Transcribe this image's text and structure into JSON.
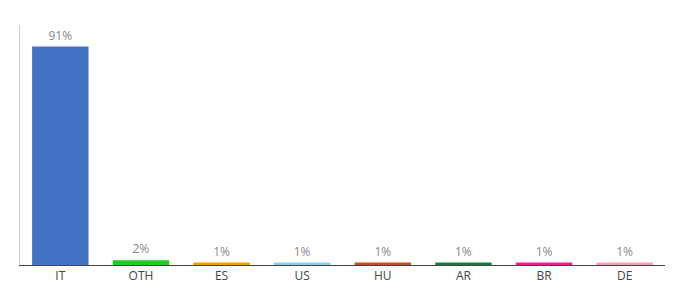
{
  "chart_data": {
    "type": "bar",
    "categories": [
      "IT",
      "OTH",
      "ES",
      "US",
      "HU",
      "AR",
      "BR",
      "DE"
    ],
    "values": [
      91,
      2,
      1,
      1,
      1,
      1,
      1,
      1
    ],
    "value_labels": [
      "91%",
      "2%",
      "1%",
      "1%",
      "1%",
      "1%",
      "1%",
      "1%"
    ],
    "colors": [
      "#4472c4",
      "#22cc22",
      "#f0a000",
      "#87ceeb",
      "#c05020",
      "#1a7a3a",
      "#e91e8c",
      "#f4a0b0"
    ],
    "ylim": [
      0,
      100
    ],
    "yticks": [],
    "data_labels": true,
    "tick_labels": "x",
    "grid": false
  }
}
